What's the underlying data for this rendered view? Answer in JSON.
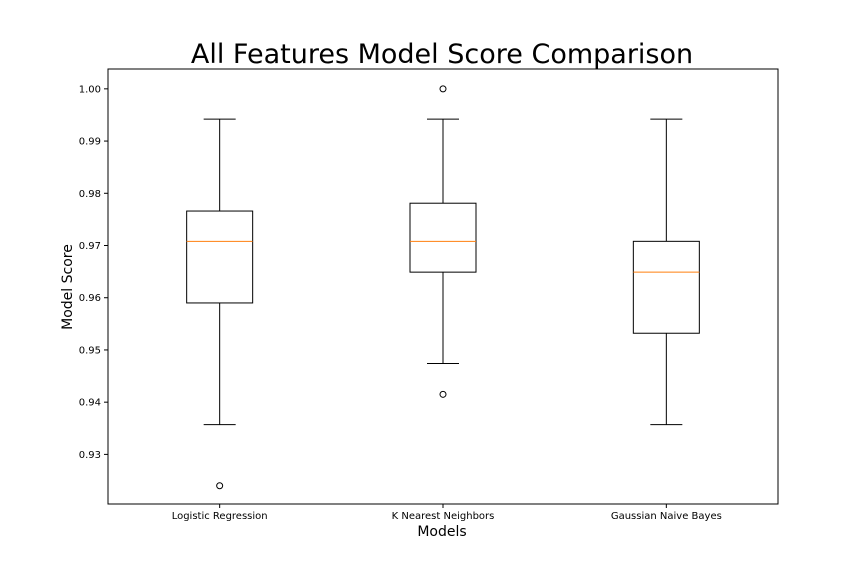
{
  "chart_data": {
    "type": "box",
    "title": "All Features Model Score Comparison",
    "xlabel": "Models",
    "ylabel": "Model Score",
    "ylim": [
      0.9205,
      1.0038
    ],
    "yticks": [
      0.93,
      0.94,
      0.95,
      0.96,
      0.97,
      0.98,
      0.99,
      1.0
    ],
    "ytick_labels": [
      "0.93",
      "0.94",
      "0.95",
      "0.96",
      "0.97",
      "0.98",
      "0.99",
      "1.00"
    ],
    "categories": [
      "Logistic Regression",
      "K Nearest Neighbors",
      "Gaussian Naive Bayes"
    ],
    "boxes": [
      {
        "whisker_low": 0.9357,
        "q1": 0.959,
        "median": 0.9708,
        "q3": 0.9766,
        "whisker_high": 0.9942,
        "outliers": [
          0.924
        ]
      },
      {
        "whisker_low": 0.9474,
        "q1": 0.9649,
        "median": 0.9708,
        "q3": 0.9781,
        "whisker_high": 0.9942,
        "outliers": [
          1.0,
          0.9415
        ]
      },
      {
        "whisker_low": 0.9357,
        "q1": 0.9532,
        "median": 0.9649,
        "q3": 0.9708,
        "whisker_high": 0.9942,
        "outliers": []
      }
    ],
    "grid": false,
    "colors": {
      "box": "#000000",
      "median": "#ff7f0e",
      "outlier": "#000000",
      "background": "#ffffff"
    }
  }
}
